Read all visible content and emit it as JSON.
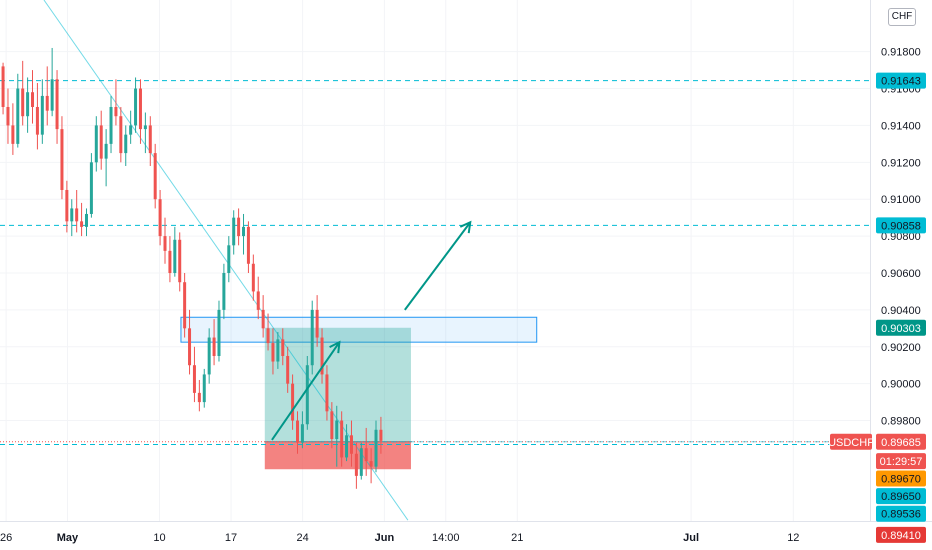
{
  "currency_button": "CHF",
  "chart_data": {
    "type": "candlestick",
    "symbol": "USDCHF",
    "price_axis": {
      "ticks": [
        "0.91800",
        "0.91600",
        "0.91400",
        "0.91200",
        "0.91000",
        "0.90800",
        "0.90600",
        "0.90400",
        "0.90200",
        "0.90000",
        "0.89800"
      ],
      "range": [
        0.8925,
        0.9208
      ]
    },
    "time_axis": {
      "labels": [
        {
          "label": "26",
          "day": -5
        },
        {
          "label": "May",
          "day": 1
        },
        {
          "label": "10",
          "day": 10
        },
        {
          "label": "17",
          "day": 17
        },
        {
          "label": "24",
          "day": 24
        },
        {
          "label": "Jun",
          "day": 32
        },
        {
          "label": "14:00",
          "day": 38
        },
        {
          "label": "21",
          "day": 45
        },
        {
          "label": "Jul",
          "day": 62
        },
        {
          "label": "12",
          "day": 72
        }
      ],
      "range": [
        -5.6,
        79.5
      ]
    },
    "candles_ohlc": [
      [
        0.9172,
        0.9174,
        0.9146,
        0.915
      ],
      [
        0.915,
        0.916,
        0.913,
        0.914
      ],
      [
        0.914,
        0.9152,
        0.9124,
        0.913
      ],
      [
        0.913,
        0.9168,
        0.9128,
        0.916
      ],
      [
        0.916,
        0.9175,
        0.914,
        0.9145
      ],
      [
        0.9145,
        0.9166,
        0.9136,
        0.9158
      ],
      [
        0.9158,
        0.917,
        0.9141,
        0.915
      ],
      [
        0.915,
        0.9163,
        0.9127,
        0.9135
      ],
      [
        0.9135,
        0.9165,
        0.913,
        0.9156
      ],
      [
        0.9156,
        0.9172,
        0.914,
        0.9148
      ],
      [
        0.9148,
        0.9182,
        0.9145,
        0.9165
      ],
      [
        0.9165,
        0.917,
        0.913,
        0.9138
      ],
      [
        0.9138,
        0.9145,
        0.91,
        0.9105
      ],
      [
        0.9105,
        0.911,
        0.9082,
        0.9088
      ],
      [
        0.9088,
        0.91,
        0.908,
        0.9095
      ],
      [
        0.9095,
        0.9105,
        0.9082,
        0.9088
      ],
      [
        0.9088,
        0.9098,
        0.908,
        0.9085
      ],
      [
        0.9085,
        0.9095,
        0.908,
        0.9092
      ],
      [
        0.9092,
        0.9125,
        0.909,
        0.912
      ],
      [
        0.912,
        0.9145,
        0.9115,
        0.914
      ],
      [
        0.914,
        0.9148,
        0.9116,
        0.9122
      ],
      [
        0.9122,
        0.9138,
        0.9107,
        0.913
      ],
      [
        0.913,
        0.9156,
        0.9125,
        0.915
      ],
      [
        0.915,
        0.9165,
        0.914,
        0.9145
      ],
      [
        0.9145,
        0.915,
        0.912,
        0.9125
      ],
      [
        0.9125,
        0.914,
        0.9118,
        0.9135
      ],
      [
        0.9135,
        0.9148,
        0.913,
        0.914
      ],
      [
        0.914,
        0.9166,
        0.9136,
        0.916
      ],
      [
        0.916,
        0.9165,
        0.913,
        0.9138
      ],
      [
        0.9138,
        0.9147,
        0.9125,
        0.914
      ],
      [
        0.914,
        0.9145,
        0.9118,
        0.9125
      ],
      [
        0.9125,
        0.913,
        0.9095,
        0.91
      ],
      [
        0.91,
        0.9105,
        0.9075,
        0.908
      ],
      [
        0.908,
        0.909,
        0.9065,
        0.9072
      ],
      [
        0.9072,
        0.908,
        0.9055,
        0.906
      ],
      [
        0.906,
        0.9085,
        0.9058,
        0.9078
      ],
      [
        0.9078,
        0.9082,
        0.905,
        0.9055
      ],
      [
        0.9055,
        0.906,
        0.9025,
        0.903
      ],
      [
        0.903,
        0.904,
        0.9005,
        0.901
      ],
      [
        0.901,
        0.902,
        0.899,
        0.8995
      ],
      [
        0.8995,
        0.9002,
        0.8985,
        0.899
      ],
      [
        0.899,
        0.9008,
        0.8987,
        0.9005
      ],
      [
        0.9005,
        0.903,
        0.9,
        0.9025
      ],
      [
        0.9025,
        0.9035,
        0.901,
        0.9015
      ],
      [
        0.9015,
        0.9045,
        0.9012,
        0.904
      ],
      [
        0.904,
        0.9065,
        0.9035,
        0.906
      ],
      [
        0.906,
        0.908,
        0.9055,
        0.9075
      ],
      [
        0.9075,
        0.9094,
        0.907,
        0.909
      ],
      [
        0.909,
        0.9095,
        0.9075,
        0.908
      ],
      [
        0.908,
        0.9092,
        0.907,
        0.9085
      ],
      [
        0.9085,
        0.9088,
        0.906,
        0.9065
      ],
      [
        0.9065,
        0.907,
        0.9045,
        0.905
      ],
      [
        0.905,
        0.9058,
        0.9035,
        0.904
      ],
      [
        0.904,
        0.9048,
        0.9025,
        0.903
      ],
      [
        0.903,
        0.9038,
        0.9018,
        0.9022
      ],
      [
        0.9022,
        0.903,
        0.9005,
        0.9012
      ],
      [
        0.9012,
        0.9028,
        0.9008,
        0.9024
      ],
      [
        0.9024,
        0.903,
        0.901,
        0.9015
      ],
      [
        0.9015,
        0.902,
        0.8995,
        0.9
      ],
      [
        0.9,
        0.9005,
        0.8975,
        0.898
      ],
      [
        0.898,
        0.8985,
        0.8962,
        0.8968
      ],
      [
        0.8968,
        0.8985,
        0.8965,
        0.8978
      ],
      [
        0.8978,
        0.9015,
        0.8975,
        0.901
      ],
      [
        0.901,
        0.9045,
        0.9005,
        0.904
      ],
      [
        0.904,
        0.9048,
        0.902,
        0.9025
      ],
      [
        0.9025,
        0.903,
        0.9,
        0.9005
      ],
      [
        0.9005,
        0.901,
        0.898,
        0.8985
      ],
      [
        0.8985,
        0.899,
        0.8965,
        0.897
      ],
      [
        0.897,
        0.8988,
        0.8955,
        0.898
      ],
      [
        0.898,
        0.8985,
        0.8955,
        0.896
      ],
      [
        0.896,
        0.8978,
        0.8958,
        0.8972
      ],
      [
        0.8972,
        0.898,
        0.8955,
        0.8962
      ],
      [
        0.8962,
        0.8968,
        0.8943,
        0.895
      ],
      [
        0.895,
        0.8968,
        0.8948,
        0.8965
      ],
      [
        0.8965,
        0.8976,
        0.895,
        0.8958
      ],
      [
        0.8958,
        0.8965,
        0.8946,
        0.8955
      ],
      [
        0.8955,
        0.898,
        0.8952,
        0.8975
      ],
      [
        0.8975,
        0.8982,
        0.8962,
        0.8969
      ]
    ],
    "candle_time": {
      "first_day": -5.3,
      "step_days": 0.48
    },
    "horizontal_lines": [
      {
        "price": 0.91643,
        "label": "0.91643",
        "color": "#00bcd4",
        "style": "dashed"
      },
      {
        "price": 0.90858,
        "label": "0.90858",
        "color": "#00bcd4",
        "style": "dashed"
      },
      {
        "price": 0.8967,
        "label": "0.89670",
        "color": "#00bcd4",
        "style": "dashed"
      }
    ],
    "trendline": {
      "from": {
        "day": -1.3,
        "price": 0.9208
      },
      "to": {
        "day": 34.3,
        "price": 0.8926
      },
      "color": "#00bcd4"
    },
    "zone": {
      "day_from": 12.1,
      "day_to": 46.9,
      "price_top": 0.9036,
      "price_bottom": 0.90225,
      "color": "#2196f3"
    },
    "position": {
      "day_from": 20.3,
      "day_to": 34.6,
      "entry": 0.89685,
      "target": 0.90303,
      "stop": 0.89536,
      "profit_color": "#26a69a",
      "loss_color": "#ef5350"
    },
    "arrows": [
      {
        "from": {
          "day": 21.0,
          "price": 0.89695
        },
        "to": {
          "day": 27.6,
          "price": 0.90225
        },
        "color": "#009688"
      },
      {
        "from": {
          "day": 34.0,
          "price": 0.904
        },
        "to": {
          "day": 40.4,
          "price": 0.90875
        },
        "color": "#009688"
      }
    ],
    "current_price_line": {
      "price": 0.89685,
      "color": "#ef5350"
    },
    "price_tags": [
      {
        "text": "0.91643",
        "price": 0.91643,
        "bg": "#00bcd4",
        "fg": "#131722"
      },
      {
        "text": "0.90858",
        "price": 0.90858,
        "bg": "#00bcd4",
        "fg": "#131722"
      },
      {
        "text": "0.90303",
        "price": 0.90303,
        "bg": "#009688",
        "fg": "#ffffff"
      },
      {
        "text": "0.89685",
        "price": 0.89685,
        "bg": "#ef5350",
        "fg": "#ffffff"
      },
      {
        "text": "01:29:57",
        "price": 0.8958,
        "bg": "#ef5350",
        "fg": "#ffffff"
      },
      {
        "text": "0.89670",
        "price": 0.89486,
        "bg": "#ff9800",
        "fg": "#131722"
      },
      {
        "text": "0.89650",
        "price": 0.8939,
        "bg": "#00bcd4",
        "fg": "#131722"
      },
      {
        "text": "0.89536",
        "price": 0.89295,
        "bg": "#00bcd4",
        "fg": "#131722"
      },
      {
        "text": "0.89410",
        "price": 0.8918,
        "bg": "#e53935",
        "fg": "#ffffff"
      }
    ],
    "symbol_tag": {
      "text": "USDCHF",
      "price": 0.89685,
      "bg": "#ef5350",
      "fg": "#ffffff"
    },
    "up_color": "#26a69a",
    "down_color": "#ef5350"
  }
}
